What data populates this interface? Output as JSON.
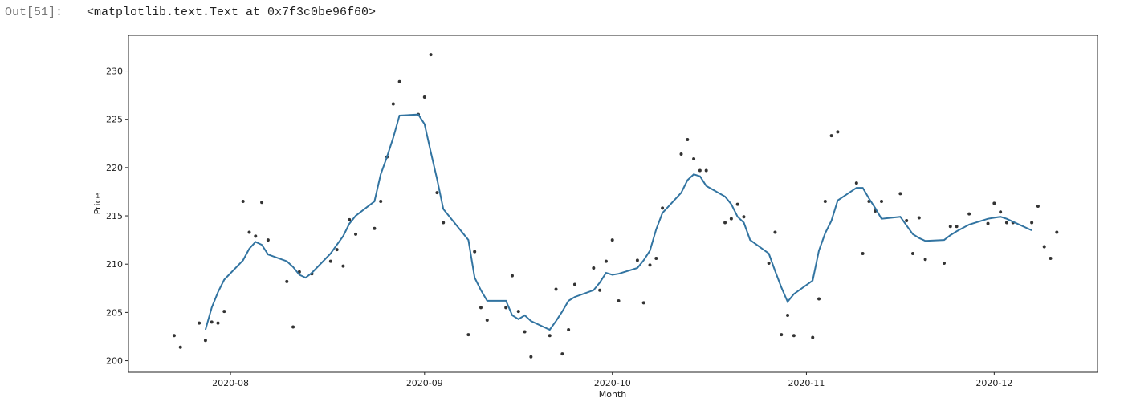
{
  "output": {
    "prompt": "Out[51]:",
    "text": "<matplotlib.text.Text at 0x7f3c0be96f60>"
  },
  "chart_data": {
    "type": "line",
    "xlabel": "Month",
    "ylabel": "Price",
    "xlim": [
      -16.3,
      138.5
    ],
    "ylim": [
      198.8,
      233.7
    ],
    "xticks": [
      {
        "value": 0,
        "label": "2020-08"
      },
      {
        "value": 31,
        "label": "2020-09"
      },
      {
        "value": 61,
        "label": "2020-10"
      },
      {
        "value": 92,
        "label": "2020-11"
      },
      {
        "value": 122,
        "label": "2020-12"
      }
    ],
    "yticks": [
      200,
      205,
      210,
      215,
      220,
      225,
      230
    ],
    "series": [
      {
        "type": "scatter",
        "color": "#333333",
        "x": [
          -9,
          -8,
          -5,
          -4,
          -3,
          -2,
          -1,
          2,
          3,
          4,
          5,
          6,
          9,
          10,
          11,
          13,
          16,
          17,
          18,
          19,
          20,
          23,
          24,
          25,
          26,
          27,
          30,
          31,
          32,
          33,
          34,
          38,
          39,
          40,
          41,
          44,
          45,
          46,
          47,
          48,
          51,
          52,
          53,
          54,
          55,
          58,
          59,
          60,
          61,
          62,
          65,
          66,
          67,
          68,
          69,
          72,
          73,
          74,
          75,
          76,
          79,
          80,
          81,
          82,
          86,
          87,
          88,
          89,
          90,
          93,
          94,
          95,
          96,
          97,
          100,
          101,
          102,
          103,
          104,
          107,
          108,
          109,
          110,
          111,
          114,
          115,
          116,
          118,
          121,
          122,
          123,
          124,
          125,
          128,
          129,
          130,
          131,
          132
        ],
        "values": [
          202.6,
          201.4,
          203.9,
          202.1,
          204.0,
          203.9,
          205.1,
          216.5,
          213.3,
          212.9,
          216.4,
          212.5,
          208.2,
          203.5,
          209.2,
          209.0,
          210.3,
          211.5,
          209.8,
          214.6,
          213.1,
          213.7,
          216.5,
          221.1,
          226.6,
          228.9,
          225.5,
          227.3,
          231.7,
          217.4,
          214.3,
          202.7,
          211.3,
          205.5,
          204.2,
          205.5,
          208.8,
          205.1,
          203.0,
          200.4,
          202.6,
          207.4,
          200.7,
          203.2,
          207.9,
          209.6,
          207.3,
          210.3,
          212.5,
          206.2,
          210.4,
          206.0,
          209.9,
          210.6,
          215.8,
          221.4,
          222.9,
          220.9,
          219.7,
          219.7,
          214.3,
          214.7,
          216.2,
          214.9,
          210.1,
          213.3,
          202.7,
          204.7,
          202.6,
          202.4,
          206.4,
          216.5,
          223.3,
          223.7,
          218.4,
          211.1,
          216.5,
          215.5,
          216.5,
          217.3,
          214.5,
          211.1,
          214.8,
          210.5,
          210.1,
          213.9,
          213.9,
          215.2,
          214.2,
          216.3,
          215.4,
          214.3,
          214.3,
          214.3,
          216.0,
          211.8,
          210.6,
          213.3
        ]
      },
      {
        "type": "line",
        "color": "#3274a1",
        "x": [
          -4,
          -3,
          -2,
          -1,
          2,
          3,
          4,
          5,
          6,
          9,
          10,
          11,
          12,
          13,
          16,
          17,
          18,
          19,
          20,
          23,
          24,
          25,
          26,
          27,
          30,
          31,
          32,
          33,
          34,
          38,
          39,
          40,
          41,
          44,
          45,
          46,
          47,
          48,
          51,
          52,
          53,
          54,
          55,
          58,
          59,
          60,
          61,
          62,
          65,
          66,
          67,
          68,
          69,
          72,
          73,
          74,
          75,
          76,
          79,
          80,
          81,
          82,
          83,
          86,
          87,
          88,
          89,
          90,
          93,
          94,
          95,
          96,
          97,
          100,
          101,
          102,
          103,
          104,
          107,
          108,
          109,
          110,
          111,
          114,
          115,
          116,
          118,
          121,
          122,
          123,
          124,
          125,
          128
        ],
        "values": [
          203.2,
          205.5,
          207.1,
          208.4,
          210.4,
          211.6,
          212.3,
          212.0,
          211.0,
          210.3,
          209.7,
          208.9,
          208.6,
          209.1,
          211.1,
          212.0,
          212.9,
          214.2,
          215.0,
          216.5,
          219.3,
          221.1,
          223.1,
          225.4,
          225.5,
          224.5,
          221.6,
          218.8,
          215.7,
          212.5,
          208.6,
          207.3,
          206.2,
          206.2,
          204.7,
          204.3,
          204.7,
          204.1,
          203.2,
          204.1,
          205.1,
          206.2,
          206.6,
          207.3,
          208.1,
          209.1,
          208.9,
          209.0,
          209.6,
          210.4,
          211.4,
          213.6,
          215.3,
          217.4,
          218.7,
          219.3,
          219.1,
          218.1,
          217.0,
          216.2,
          214.9,
          214.3,
          212.5,
          211.1,
          209.3,
          207.6,
          206.1,
          206.9,
          208.3,
          211.4,
          213.2,
          214.5,
          216.6,
          217.9,
          217.9,
          216.8,
          215.8,
          214.7,
          214.9,
          214.0,
          213.1,
          212.7,
          212.4,
          212.5,
          213.0,
          213.4,
          214.1,
          214.7,
          214.8,
          214.9,
          214.7,
          214.4,
          213.5
        ]
      }
    ]
  }
}
